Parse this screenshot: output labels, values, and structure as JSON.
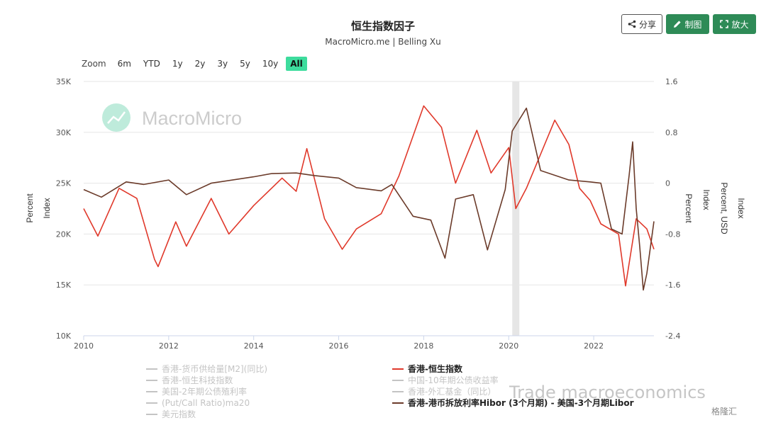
{
  "header": {
    "title": "恒生指数因子",
    "subtitle": "MacroMicro.me | Belling Xu",
    "share_label": "分享",
    "draw_label": "制图",
    "zoom_label": "放大"
  },
  "zoom": {
    "label": "Zoom",
    "options": [
      "6m",
      "YTD",
      "1y",
      "2y",
      "3y",
      "5y",
      "10y",
      "All"
    ],
    "active": "All"
  },
  "watermark": {
    "brand": "MacroMicro",
    "trade": "Trade macroeconomics",
    "badge": "格隆汇"
  },
  "axes": {
    "left_labels": [
      "Percent",
      "Index"
    ],
    "right_labels": [
      "Percent",
      "Index",
      "Percent, USD",
      "Index"
    ]
  },
  "legend_left": [
    "香港-货币供给量[M2](同比)",
    "香港-恒生科技指数",
    "美国-2年期公债殖利率",
    "(Put/Call Ratio)ma20",
    "美元指数"
  ],
  "legend_right": [
    "香港-恒生指数",
    "中国-10年期公债收益率",
    "香港-外汇基金（同比）",
    "香港-港币拆放利率Hibor (3个月期) - 美国-3个月期Libor"
  ],
  "colors": {
    "hsi": "#e0392b",
    "spread": "#6b3b2a",
    "inactive": "#c4c4c4",
    "accent": "#2e8b57",
    "active_zoom": "#3ddc9d",
    "recession": "#e6e6e6"
  },
  "chart_data": {
    "type": "line",
    "x_ticks": [
      "2010",
      "2012",
      "2014",
      "2016",
      "2018",
      "2020",
      "2022"
    ],
    "xlim": [
      "2010-01",
      "2023-06"
    ],
    "y_left": {
      "ticks": [
        "10K",
        "15K",
        "20K",
        "25K",
        "30K",
        "35K"
      ],
      "ylim": [
        10000,
        35000
      ]
    },
    "y_right": {
      "ticks": [
        "-2.4",
        "-1.6",
        "-0.8",
        "0",
        "0.8",
        "1.6"
      ],
      "ylim": [
        -2.4,
        1.6
      ]
    },
    "shaded_period": [
      "2020-02",
      "2020-04"
    ],
    "series": [
      {
        "name": "香港-恒生指数",
        "axis": "left",
        "x": [
          "2010-01",
          "2010-05",
          "2010-11",
          "2011-04",
          "2011-09",
          "2011-10",
          "2012-03",
          "2012-06",
          "2013-01",
          "2013-06",
          "2014-01",
          "2014-09",
          "2015-01",
          "2015-04",
          "2015-09",
          "2016-02",
          "2016-06",
          "2017-01",
          "2017-06",
          "2018-01",
          "2018-06",
          "2018-10",
          "2019-04",
          "2019-08",
          "2020-01",
          "2020-03",
          "2020-06",
          "2021-02",
          "2021-06",
          "2021-09",
          "2021-12",
          "2022-03",
          "2022-08",
          "2022-10",
          "2023-01",
          "2023-04",
          "2023-06"
        ],
        "values": [
          22500,
          19800,
          24500,
          23500,
          17500,
          16800,
          21200,
          18800,
          23500,
          20000,
          22800,
          25500,
          24200,
          28400,
          21500,
          18500,
          20500,
          22000,
          25700,
          32600,
          30500,
          25000,
          30200,
          26000,
          28500,
          22500,
          24500,
          31200,
          28800,
          24500,
          23300,
          21000,
          20000,
          14900,
          21500,
          20500,
          18500
        ]
      },
      {
        "name": "香港-港币拆放利率Hibor (3个月期) - 美国-3个月期Libor",
        "axis": "right",
        "x": [
          "2010-01",
          "2010-06",
          "2011-01",
          "2011-06",
          "2012-01",
          "2012-06",
          "2013-01",
          "2014-01",
          "2014-06",
          "2015-01",
          "2015-06",
          "2016-01",
          "2016-06",
          "2017-01",
          "2017-04",
          "2017-10",
          "2018-03",
          "2018-07",
          "2018-10",
          "2019-03",
          "2019-07",
          "2019-12",
          "2020-02",
          "2020-06",
          "2020-10",
          "2021-06",
          "2021-12",
          "2022-03",
          "2022-06",
          "2022-09",
          "2022-11",
          "2022-12",
          "2023-01",
          "2023-02",
          "2023-03",
          "2023-04",
          "2023-06"
        ],
        "values": [
          -0.1,
          -0.22,
          0.02,
          -0.02,
          0.05,
          -0.18,
          0.0,
          0.1,
          0.15,
          0.16,
          0.12,
          0.08,
          -0.07,
          -0.12,
          -0.02,
          -0.52,
          -0.58,
          -1.18,
          -0.25,
          -0.18,
          -1.05,
          -0.1,
          0.82,
          1.18,
          0.2,
          0.05,
          0.02,
          0.0,
          -0.72,
          -0.8,
          0.12,
          0.65,
          -0.4,
          -1.0,
          -1.68,
          -1.42,
          -0.6
        ]
      }
    ]
  }
}
